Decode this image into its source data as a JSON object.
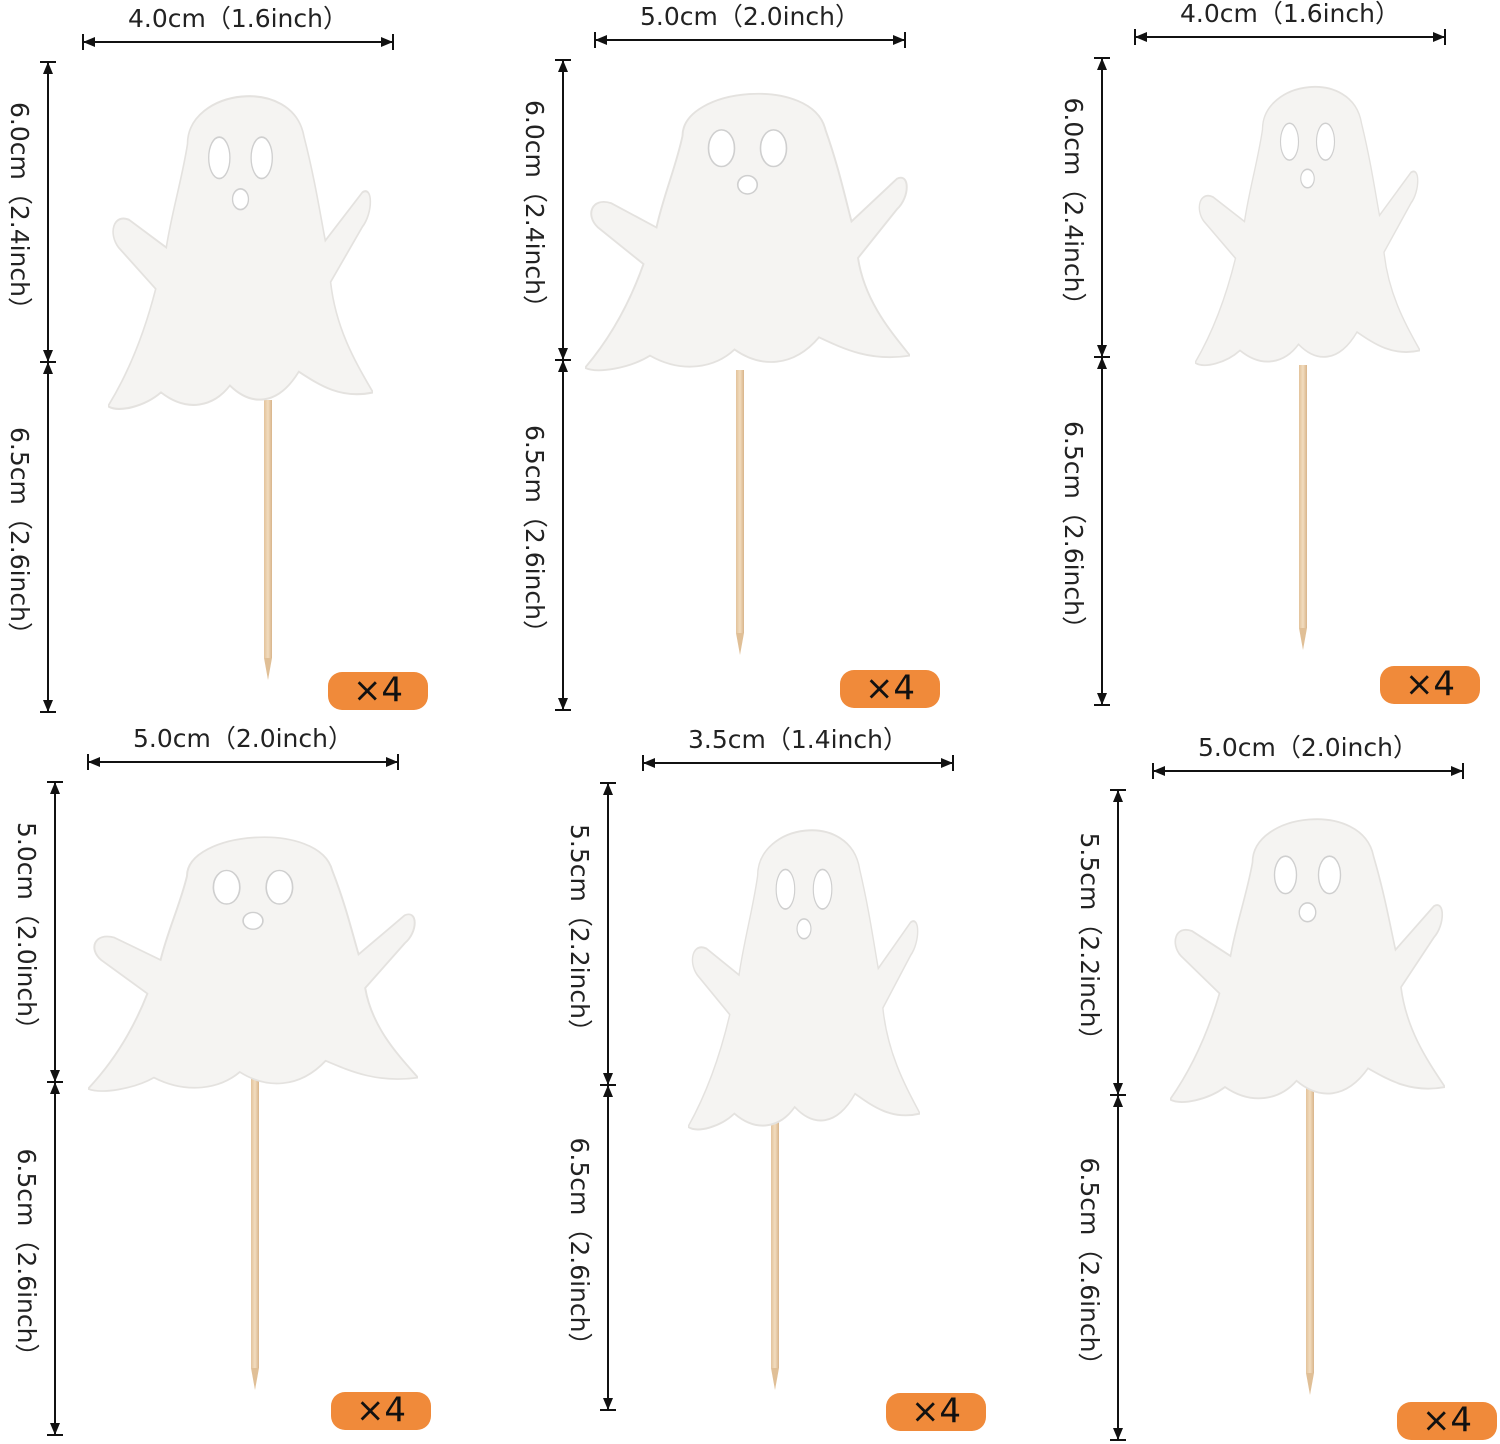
{
  "items": [
    {
      "width": "4.0cm（1.6inch）",
      "top_height": "6.0cm（2.4inch）",
      "stick_height": "6.5cm（2.6inch）",
      "quantity": "×4"
    },
    {
      "width": "5.0cm（2.0inch）",
      "top_height": "6.0cm（2.4inch）",
      "stick_height": "6.5cm（2.6inch）",
      "quantity": "×4"
    },
    {
      "width": "4.0cm（1.6inch）",
      "top_height": "6.0cm（2.4inch）",
      "stick_height": "6.5cm（2.6inch）",
      "quantity": "×4"
    },
    {
      "width": "5.0cm（2.0inch）",
      "top_height": "5.0cm（2.0inch）",
      "stick_height": "6.5cm（2.6inch）",
      "quantity": "×4"
    },
    {
      "width": "3.5cm（1.4inch）",
      "top_height": "5.5cm（2.2inch）",
      "stick_height": "6.5cm（2.6inch）",
      "quantity": "×4"
    },
    {
      "width": "5.0cm（2.0inch）",
      "top_height": "5.5cm（2.2inch）",
      "stick_height": "6.5cm（2.6inch）",
      "quantity": "×4"
    }
  ]
}
